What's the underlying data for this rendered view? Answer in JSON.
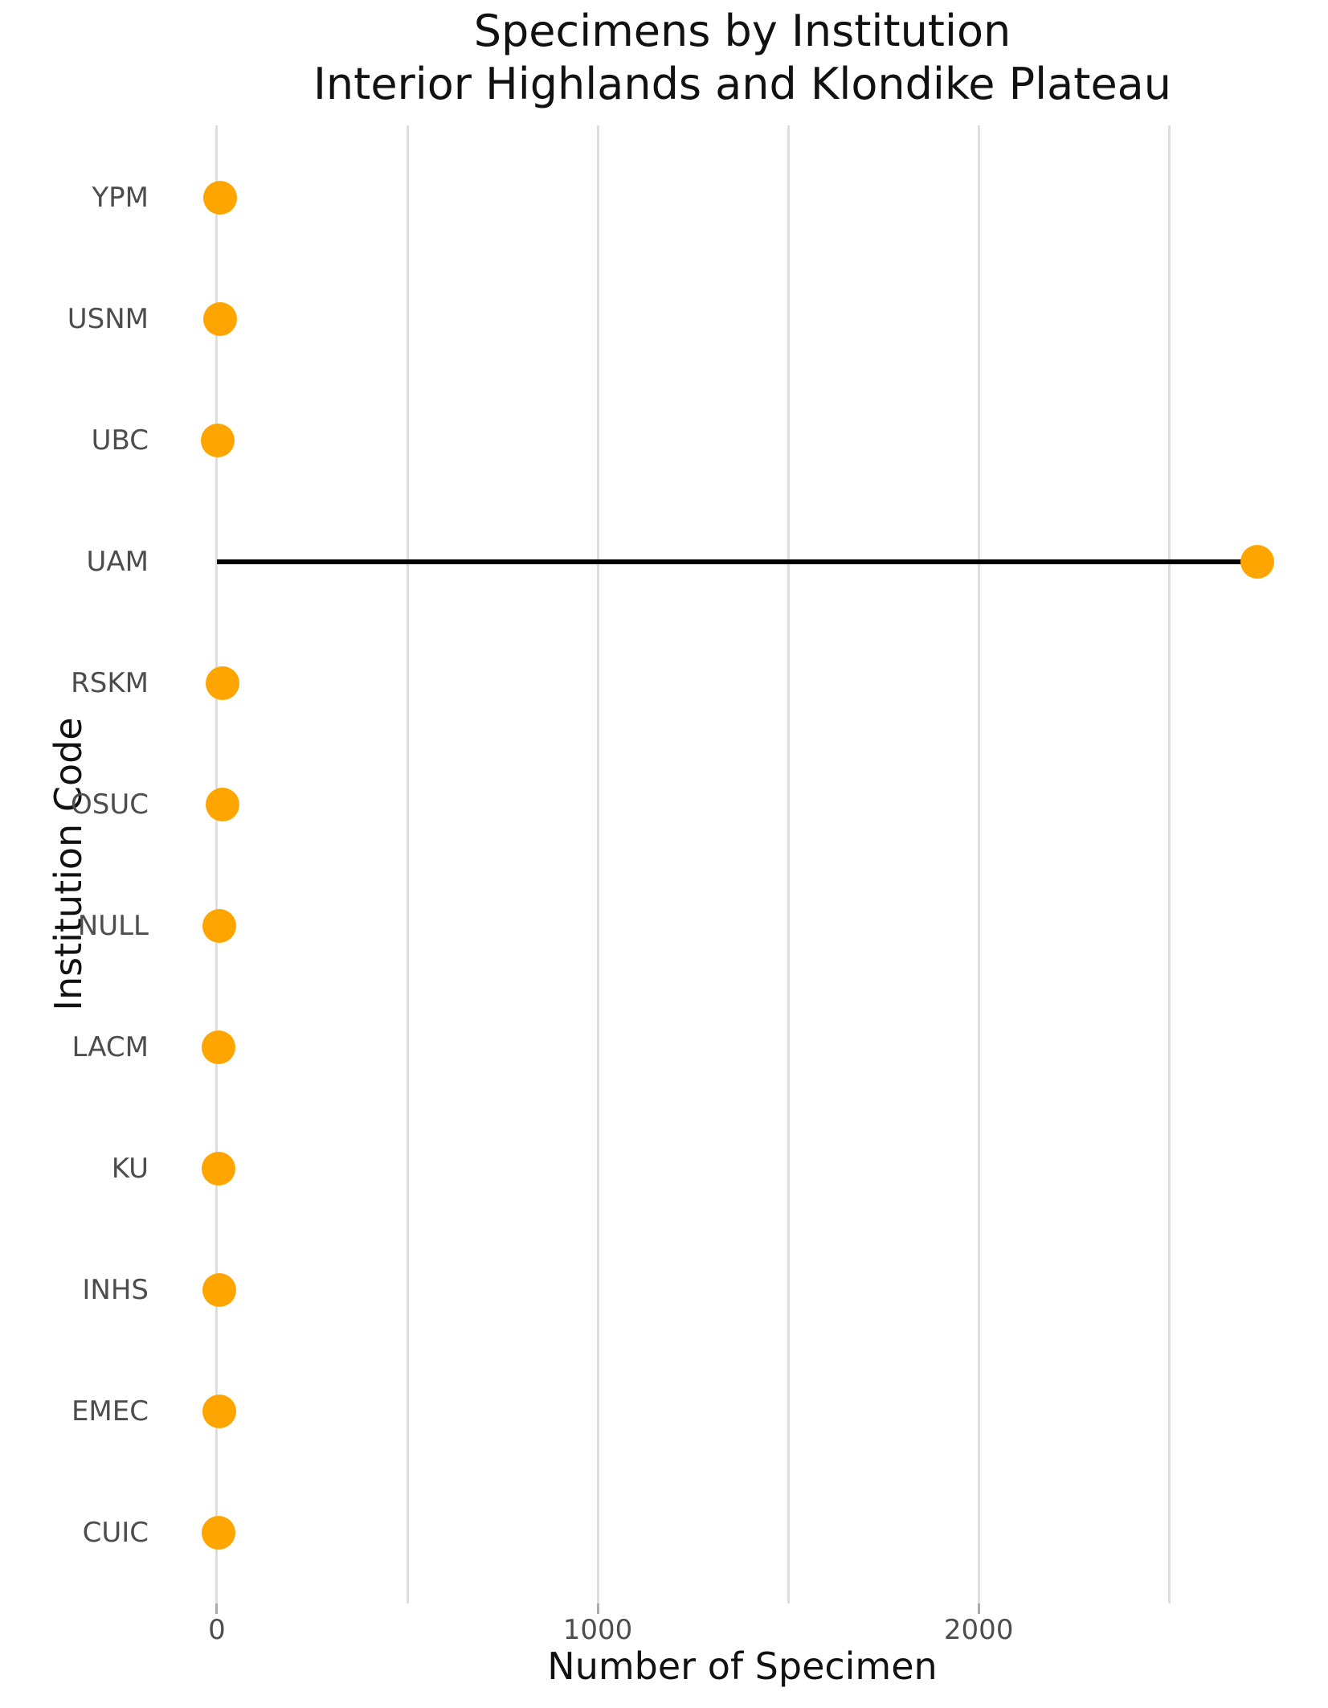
{
  "chart_data": {
    "type": "scatter",
    "variant": "horizontal-lollipop",
    "title": "Specimens by Institution",
    "subtitle": "Interior Highlands and Klondike Plateau",
    "xlabel": "Number of Specimen",
    "ylabel": "Institution Code",
    "categories": [
      "YPM",
      "USNM",
      "UBC",
      "UAM",
      "RSKM",
      "OSUC",
      "NULL",
      "LACM",
      "KU",
      "INHS",
      "EMEC",
      "CUIC"
    ],
    "values": [
      8,
      8,
      3,
      2732,
      16,
      16,
      7,
      5,
      5,
      6,
      6,
      4
    ],
    "values_note": "approximate, read from pixel positions; all rows except UAM are near zero",
    "xlim": [
      -141,
      2900
    ],
    "x_gridlines": [
      0,
      500,
      1000,
      1500,
      2000,
      2500
    ],
    "x_ticks": [
      {
        "value": 0,
        "label": "0"
      },
      {
        "value": 1000,
        "label": "1000"
      },
      {
        "value": 2000,
        "label": "2000"
      }
    ],
    "grid": "vertical-only",
    "legend": "none",
    "colors": {
      "dot": "#FFA500",
      "stem": "#000000",
      "gridline": "#DEDEDE",
      "tick_mark": "#ABABAB",
      "tick_label": "#4D4D4D",
      "axis_title": "#111111",
      "title": "#111111",
      "background": "#FFFFFF"
    }
  }
}
